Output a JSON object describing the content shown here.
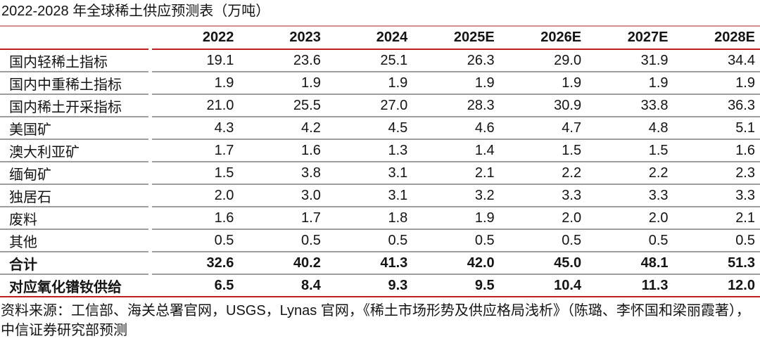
{
  "title": "2022-2028 年全球稀土供应预测表（万吨）",
  "chart_data": {
    "type": "table",
    "title": "2022-2028 年全球稀土供应预测表（万吨）",
    "columns": [
      "2022",
      "2023",
      "2024",
      "2025E",
      "2026E",
      "2027E",
      "2028E"
    ],
    "rows": [
      {
        "label": "国内轻稀土指标",
        "values": [
          "19.1",
          "23.6",
          "25.1",
          "26.3",
          "29.0",
          "31.9",
          "34.4"
        ],
        "bold": false
      },
      {
        "label": "国内中重稀土指标",
        "values": [
          "1.9",
          "1.9",
          "1.9",
          "1.9",
          "1.9",
          "1.9",
          "1.9"
        ],
        "bold": false
      },
      {
        "label": "国内稀土开采指标",
        "values": [
          "21.0",
          "25.5",
          "27.0",
          "28.3",
          "30.9",
          "33.8",
          "36.3"
        ],
        "bold": false
      },
      {
        "label": "美国矿",
        "values": [
          "4.3",
          "4.2",
          "4.5",
          "4.6",
          "4.7",
          "4.8",
          "5.1"
        ],
        "bold": false
      },
      {
        "label": "澳大利亚矿",
        "values": [
          "1.7",
          "1.6",
          "1.3",
          "1.4",
          "1.5",
          "1.5",
          "1.6"
        ],
        "bold": false
      },
      {
        "label": "缅甸矿",
        "values": [
          "1.5",
          "3.8",
          "3.1",
          "2.1",
          "2.2",
          "2.2",
          "2.3"
        ],
        "bold": false
      },
      {
        "label": "独居石",
        "values": [
          "2.0",
          "3.0",
          "3.1",
          "3.2",
          "3.3",
          "3.3",
          "3.3"
        ],
        "bold": false
      },
      {
        "label": "废料",
        "values": [
          "1.6",
          "1.7",
          "1.8",
          "1.9",
          "2.0",
          "2.0",
          "2.1"
        ],
        "bold": false
      },
      {
        "label": "其他",
        "values": [
          "0.5",
          "0.5",
          "0.5",
          "0.5",
          "0.5",
          "0.5",
          "0.5"
        ],
        "bold": false
      },
      {
        "label": "合计",
        "values": [
          "32.6",
          "40.2",
          "41.3",
          "42.0",
          "45.0",
          "48.1",
          "51.3"
        ],
        "bold": true
      },
      {
        "label": "对应氧化镨钕供给",
        "values": [
          "6.5",
          "8.4",
          "9.3",
          "9.5",
          "10.4",
          "11.3",
          "12.0"
        ],
        "bold": true
      }
    ]
  },
  "footer": {
    "source_text": "资料来源：工信部、海关总署官网，USGS，Lynas 官网，《稀土市场形势及供应格局浅析》（陈璐、李怀国和梁丽霞著），中信证券研究部预测"
  },
  "colors": {
    "accent_red": "#c0201d",
    "title_rule_red": "#d98e8e",
    "separator_gray": "#9e9e9e",
    "text_black": "#141414"
  }
}
